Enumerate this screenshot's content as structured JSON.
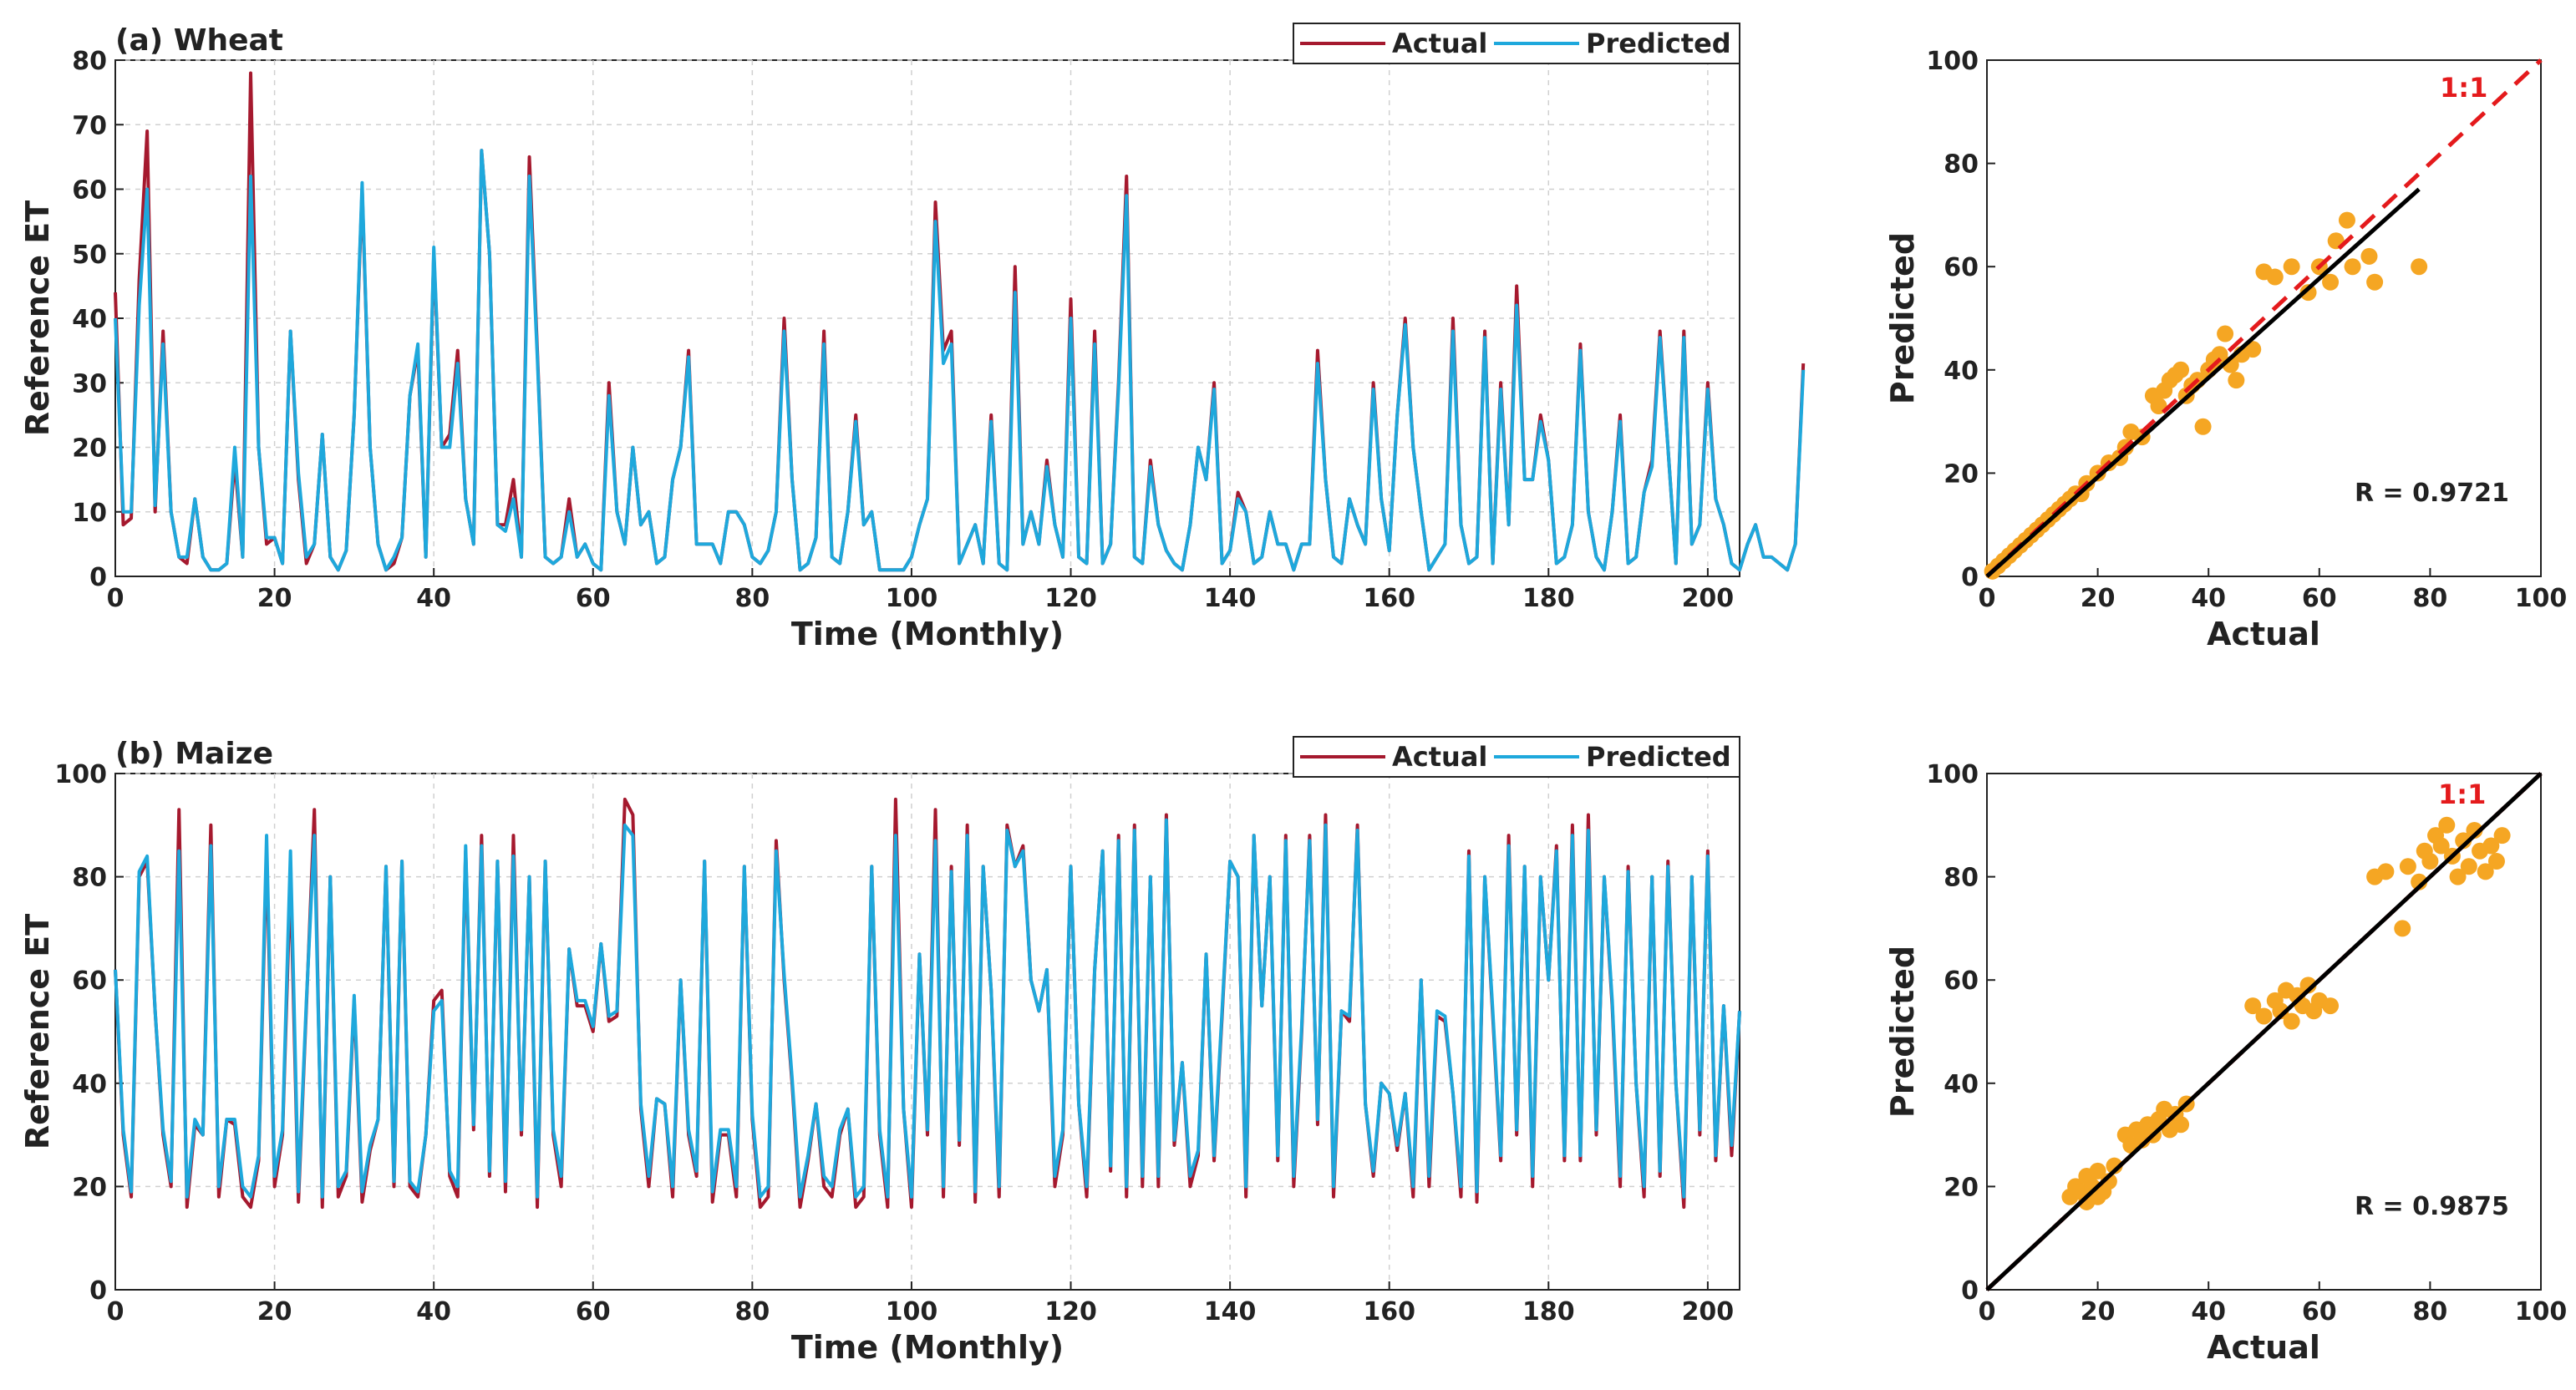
{
  "colors": {
    "actual": "#a5192e",
    "predicted": "#1ea8dc",
    "scatter": "#f5a623",
    "fit": "#000000",
    "one_to_one": "#e41a1c",
    "grid": "#d0d0d0"
  },
  "legend": {
    "actual": "Actual",
    "predicted": "Predicted"
  },
  "chart_data": [
    {
      "type": "line",
      "title": "(a) Wheat",
      "xlabel": "Time (Monthly)",
      "ylabel": "Reference ET",
      "xlim": [
        0,
        204
      ],
      "ylim": [
        0,
        80
      ],
      "xticks": [
        0,
        20,
        40,
        60,
        80,
        100,
        120,
        140,
        160,
        180,
        200
      ],
      "yticks": [
        0,
        10,
        20,
        30,
        40,
        50,
        60,
        70,
        80
      ],
      "grid": true,
      "legend_position": "top-right",
      "series": [
        {
          "name": "Actual",
          "values": [
            44,
            8,
            9,
            46,
            69,
            10,
            38,
            10,
            3,
            2,
            12,
            3,
            1,
            1,
            2,
            18,
            3,
            78,
            20,
            5,
            6,
            2,
            38,
            15,
            2,
            5,
            22,
            3,
            1,
            4,
            25,
            60,
            20,
            5,
            1,
            2,
            6,
            28,
            35,
            3,
            50,
            20,
            22,
            35,
            12,
            5,
            66,
            50,
            8,
            8,
            15,
            3,
            65,
            35,
            3,
            2,
            3,
            12,
            3,
            5,
            2,
            1,
            30,
            10,
            5,
            20,
            8,
            10,
            2,
            3,
            15,
            20,
            35,
            5,
            5,
            5,
            2,
            10,
            10,
            8,
            3,
            2,
            4,
            10,
            40,
            15,
            1,
            2,
            6,
            38,
            3,
            2,
            10,
            25,
            8,
            10,
            1,
            1,
            1,
            1,
            3,
            8,
            12,
            58,
            35,
            38,
            2,
            5,
            8,
            2,
            25,
            2,
            1,
            48,
            5,
            10,
            5,
            18,
            8,
            3,
            43,
            3,
            2,
            38,
            2,
            5,
            30,
            62,
            3,
            2,
            18,
            8,
            4,
            2,
            1,
            8,
            20,
            15,
            30,
            2,
            4,
            13,
            10,
            2,
            3,
            10,
            5,
            5,
            1,
            5,
            5,
            35,
            15,
            3,
            2,
            12,
            8,
            5,
            30,
            12,
            4,
            25,
            40,
            20,
            10,
            1,
            3,
            5,
            40,
            8,
            2,
            3,
            38,
            2,
            30,
            8,
            45,
            15,
            15,
            25,
            18,
            2,
            3,
            8,
            36,
            10,
            3,
            1,
            10,
            25,
            2,
            3,
            13,
            18,
            38,
            20,
            2,
            38,
            5,
            8,
            30,
            12,
            8,
            2,
            1,
            5,
            8,
            3,
            3,
            2,
            1,
            5,
            33
          ],
          "values_note": ""
        },
        {
          "name": "Predicted",
          "values": [
            40,
            10,
            10,
            42,
            60,
            11,
            36,
            10,
            3,
            3,
            12,
            3,
            1,
            1,
            2,
            20,
            3,
            62,
            20,
            6,
            6,
            2,
            38,
            16,
            3,
            5,
            22,
            3,
            1,
            4,
            25,
            61,
            20,
            5,
            1,
            3,
            6,
            28,
            36,
            3,
            51,
            20,
            20,
            33,
            12,
            5,
            66,
            50,
            8,
            7,
            12,
            3,
            62,
            34,
            3,
            2,
            3,
            10,
            3,
            5,
            2,
            1,
            28,
            10,
            5,
            20,
            8,
            10,
            2,
            3,
            15,
            20,
            34,
            5,
            5,
            5,
            2,
            10,
            10,
            8,
            3,
            2,
            4,
            10,
            38,
            15,
            1,
            2,
            6,
            36,
            3,
            2,
            10,
            24,
            8,
            10,
            1,
            1,
            1,
            1,
            3,
            8,
            12,
            55,
            33,
            36,
            2,
            5,
            8,
            2,
            24,
            2,
            1,
            44,
            5,
            10,
            5,
            17,
            8,
            3,
            40,
            3,
            2,
            36,
            2,
            5,
            29,
            59,
            3,
            2,
            17,
            8,
            4,
            2,
            1,
            8,
            20,
            15,
            29,
            2,
            4,
            12,
            10,
            2,
            3,
            10,
            5,
            5,
            1,
            5,
            5,
            33,
            15,
            3,
            2,
            12,
            8,
            5,
            29,
            12,
            4,
            25,
            39,
            20,
            10,
            1,
            3,
            5,
            38,
            8,
            2,
            3,
            37,
            2,
            29,
            8,
            42,
            15,
            15,
            24,
            18,
            2,
            3,
            8,
            35,
            10,
            3,
            1,
            10,
            24,
            2,
            3,
            13,
            17,
            37,
            20,
            2,
            37,
            5,
            8,
            29,
            12,
            8,
            2,
            1,
            5,
            8,
            3,
            3,
            2,
            1,
            5,
            32
          ],
          "values_note": ""
        }
      ]
    },
    {
      "type": "scatter",
      "title": "",
      "xlabel": "Actual",
      "ylabel": "Predicted",
      "xlim": [
        0,
        100
      ],
      "ylim": [
        0,
        100
      ],
      "xticks": [
        0,
        20,
        40,
        60,
        80,
        100
      ],
      "yticks": [
        0,
        20,
        40,
        60,
        80,
        100
      ],
      "annotation": "R = 0.9721",
      "one_to_one_label": "1:1",
      "fit_line": {
        "x": [
          0,
          78
        ],
        "y": [
          0,
          75
        ]
      },
      "points": {
        "x": [
          1,
          2,
          3,
          4,
          5,
          6,
          7,
          8,
          9,
          10,
          11,
          12,
          13,
          14,
          15,
          16,
          17,
          18,
          20,
          22,
          24,
          25,
          26,
          28,
          30,
          31,
          32,
          33,
          34,
          35,
          36,
          37,
          38,
          39,
          40,
          41,
          42,
          43,
          44,
          45,
          46,
          48,
          50,
          52,
          55,
          58,
          60,
          62,
          63,
          65,
          66,
          69,
          70,
          78
        ],
        "y": [
          1,
          2,
          3,
          4,
          5,
          6,
          7,
          8,
          9,
          10,
          11,
          12,
          13,
          14,
          15,
          16,
          16,
          18,
          20,
          22,
          23,
          25,
          28,
          27,
          35,
          33,
          36,
          38,
          39,
          40,
          35,
          37,
          38,
          29,
          40,
          42,
          43,
          47,
          41,
          38,
          43,
          44,
          59,
          58,
          60,
          55,
          60,
          57,
          65,
          69,
          60,
          62,
          57,
          60
        ]
      }
    },
    {
      "type": "line",
      "title": "(b) Maize",
      "xlabel": "Time (Monthly)",
      "ylabel": "Reference ET",
      "xlim": [
        0,
        204
      ],
      "ylim": [
        0,
        100
      ],
      "xticks": [
        0,
        20,
        40,
        60,
        80,
        100,
        120,
        140,
        160,
        180,
        200
      ],
      "yticks": [
        0,
        20,
        40,
        60,
        80,
        100
      ],
      "grid": true,
      "legend_position": "top-right",
      "series": [
        {
          "name": "Actual",
          "values": [
            62,
            30,
            18,
            80,
            83,
            54,
            30,
            20,
            93,
            16,
            32,
            30,
            90,
            18,
            33,
            32,
            18,
            16,
            25,
            85,
            20,
            30,
            80,
            17,
            55,
            93,
            16,
            80,
            18,
            22,
            56,
            17,
            27,
            33,
            82,
            20,
            83,
            20,
            18,
            30,
            56,
            58,
            22,
            18,
            85,
            31,
            88,
            22,
            83,
            19,
            88,
            30,
            80,
            16,
            83,
            30,
            20,
            66,
            55,
            55,
            50,
            67,
            52,
            53,
            95,
            92,
            35,
            20,
            37,
            36,
            18,
            60,
            30,
            22,
            83,
            17,
            30,
            30,
            18,
            82,
            33,
            16,
            18,
            87,
            60,
            40,
            16,
            25,
            36,
            20,
            18,
            30,
            35,
            16,
            18,
            82,
            30,
            16,
            95,
            35,
            16,
            65,
            30,
            93,
            18,
            82,
            28,
            90,
            17,
            82,
            58,
            18,
            90,
            82,
            86,
            60,
            54,
            62,
            20,
            30,
            82,
            36,
            18,
            62,
            85,
            23,
            88,
            18,
            90,
            20,
            80,
            20,
            92,
            28,
            44,
            20,
            26,
            65,
            25,
            53,
            83,
            80,
            18,
            88,
            55,
            80,
            25,
            88,
            20,
            50,
            88,
            32,
            92,
            18,
            54,
            52,
            90,
            36,
            22,
            40,
            38,
            27,
            38,
            18,
            60,
            20,
            53,
            52,
            38,
            18,
            85,
            17,
            80,
            53,
            25,
            88,
            30,
            82,
            20,
            80,
            60,
            86,
            25,
            90,
            25,
            92,
            30,
            80,
            55,
            20,
            82,
            40,
            18,
            80,
            22,
            83,
            40,
            16,
            80,
            30,
            85,
            25,
            55,
            26,
            54
          ],
          "values_note": ""
        },
        {
          "name": "Predicted",
          "values": [
            62,
            31,
            19,
            81,
            84,
            54,
            31,
            21,
            85,
            18,
            33,
            30,
            86,
            20,
            33,
            33,
            20,
            18,
            26,
            88,
            22,
            31,
            85,
            19,
            56,
            88,
            18,
            80,
            20,
            23,
            57,
            19,
            28,
            33,
            82,
            21,
            83,
            21,
            19,
            30,
            54,
            56,
            23,
            20,
            86,
            32,
            86,
            23,
            83,
            21,
            84,
            31,
            80,
            18,
            83,
            31,
            22,
            66,
            56,
            56,
            51,
            67,
            53,
            54,
            90,
            88,
            36,
            22,
            37,
            36,
            20,
            60,
            31,
            23,
            83,
            19,
            31,
            31,
            20,
            82,
            34,
            18,
            20,
            85,
            61,
            41,
            18,
            26,
            36,
            22,
            20,
            31,
            35,
            18,
            20,
            82,
            31,
            18,
            88,
            35,
            18,
            65,
            31,
            87,
            20,
            81,
            29,
            88,
            19,
            82,
            58,
            20,
            89,
            82,
            85,
            60,
            54,
            62,
            22,
            31,
            82,
            36,
            20,
            62,
            85,
            24,
            87,
            20,
            89,
            22,
            80,
            22,
            91,
            29,
            44,
            22,
            27,
            65,
            26,
            54,
            83,
            80,
            20,
            88,
            55,
            80,
            26,
            87,
            22,
            51,
            87,
            33,
            90,
            20,
            54,
            53,
            89,
            36,
            23,
            40,
            38,
            28,
            38,
            20,
            60,
            22,
            54,
            53,
            38,
            20,
            84,
            19,
            80,
            54,
            26,
            86,
            31,
            82,
            22,
            80,
            60,
            85,
            26,
            88,
            26,
            89,
            31,
            80,
            56,
            22,
            81,
            40,
            20,
            80,
            23,
            82,
            40,
            18,
            80,
            31,
            84,
            26,
            55,
            28,
            54
          ],
          "values_note": ""
        }
      ]
    },
    {
      "type": "scatter",
      "title": "",
      "xlabel": "Actual",
      "ylabel": "Predicted",
      "xlim": [
        0,
        100
      ],
      "ylim": [
        0,
        100
      ],
      "xticks": [
        0,
        20,
        40,
        60,
        80,
        100
      ],
      "yticks": [
        0,
        20,
        40,
        60,
        80,
        100
      ],
      "annotation": "R = 0.9875",
      "one_to_one_label": "1:1",
      "fit_line": {
        "x": [
          0,
          100
        ],
        "y": [
          0,
          100
        ]
      },
      "points": {
        "x": [
          15,
          16,
          17,
          18,
          18,
          19,
          20,
          20,
          21,
          22,
          23,
          25,
          26,
          27,
          28,
          29,
          30,
          31,
          32,
          33,
          34,
          35,
          36,
          48,
          50,
          52,
          53,
          54,
          55,
          56,
          57,
          58,
          59,
          60,
          62,
          70,
          72,
          75,
          76,
          78,
          79,
          80,
          81,
          82,
          83,
          84,
          85,
          86,
          87,
          88,
          89,
          90,
          91,
          92,
          93
        ],
        "y": [
          18,
          20,
          19,
          17,
          22,
          20,
          18,
          23,
          19,
          21,
          24,
          30,
          28,
          31,
          29,
          32,
          30,
          33,
          35,
          31,
          34,
          32,
          36,
          55,
          53,
          56,
          54,
          58,
          52,
          57,
          55,
          59,
          54,
          56,
          55,
          80,
          81,
          70,
          82,
          79,
          85,
          83,
          88,
          86,
          90,
          84,
          80,
          87,
          82,
          89,
          85,
          81,
          86,
          83,
          88
        ]
      }
    }
  ]
}
